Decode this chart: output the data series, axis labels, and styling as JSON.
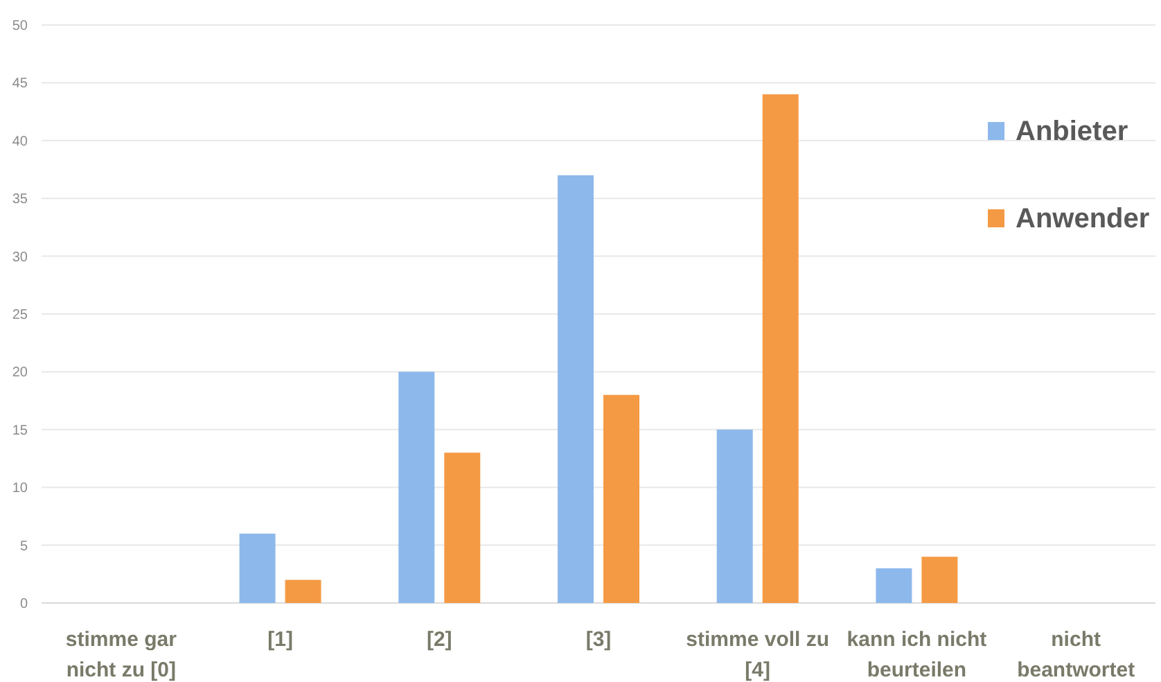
{
  "chart_data": {
    "type": "bar",
    "categories": [
      "stimme gar nicht zu [0]",
      "[1]",
      "[2]",
      "[3]",
      "stimme voll zu [4]",
      "kann ich nicht beurteilen",
      "nicht beantwortet"
    ],
    "series": [
      {
        "name": "Anbieter",
        "color": "#8db8ec",
        "values": [
          0,
          6,
          20,
          37,
          15,
          3,
          0
        ]
      },
      {
        "name": "Anwender",
        "color": "#f59a44",
        "values": [
          0,
          2,
          13,
          18,
          44,
          4,
          0
        ]
      }
    ],
    "ylim": [
      0,
      50
    ],
    "yticks": [
      0,
      5,
      10,
      15,
      20,
      25,
      30,
      35,
      40,
      45,
      50
    ],
    "grid": "y",
    "legend": "top right"
  }
}
